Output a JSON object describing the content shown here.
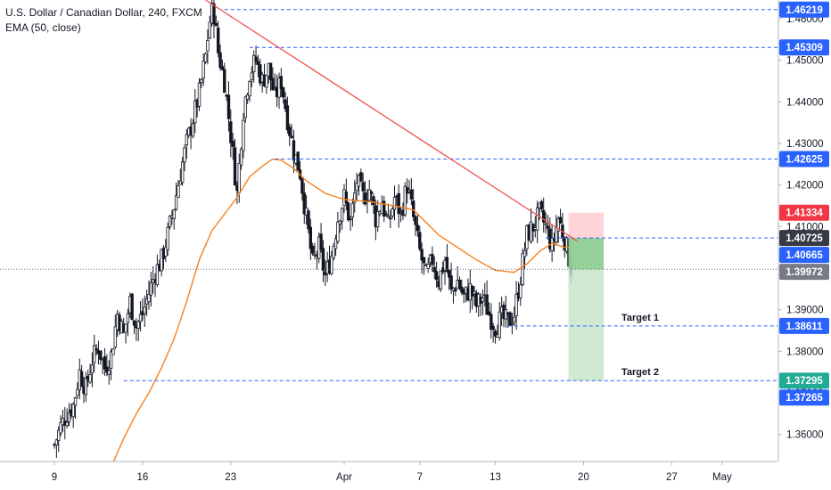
{
  "legend": {
    "title": "U.S. Dollar / Canadian Dollar, 240, FXCM",
    "indicator": "EMA (50, close)"
  },
  "chart_data": {
    "type": "candlestick",
    "title": "U.S. Dollar / Canadian Dollar, 240, FXCM",
    "indicator": "EMA (50, close)",
    "ylim": [
      1.3535,
      1.4645
    ],
    "y_ticks": [
      "1.36000",
      "1.37000",
      "1.38000",
      "1.39000",
      "1.40000",
      "1.41000",
      "1.42000",
      "1.43000",
      "1.44000",
      "1.45000",
      "1.46000"
    ],
    "x_ticks": [
      {
        "label": "9",
        "day": 0
      },
      {
        "label": "16",
        "day": 7
      },
      {
        "label": "23",
        "day": 14
      },
      {
        "label": "Apr",
        "day": 23
      },
      {
        "label": "7",
        "day": 29
      },
      {
        "label": "13",
        "day": 35
      },
      {
        "label": "20",
        "day": 42
      },
      {
        "label": "27",
        "day": 49
      },
      {
        "label": "May",
        "day": 53
      }
    ],
    "close_path": [
      [
        0.0,
        1.3575
      ],
      [
        0.5,
        1.362
      ],
      [
        1.0,
        1.365
      ],
      [
        1.5,
        1.367
      ],
      [
        2.0,
        1.375
      ],
      [
        2.5,
        1.371
      ],
      [
        3.0,
        1.378
      ],
      [
        3.5,
        1.381
      ],
      [
        4.0,
        1.376
      ],
      [
        4.5,
        1.379
      ],
      [
        5.0,
        1.389
      ],
      [
        5.5,
        1.384
      ],
      [
        6.0,
        1.392
      ],
      [
        6.5,
        1.386
      ],
      [
        7.0,
        1.389
      ],
      [
        7.5,
        1.394
      ],
      [
        8.0,
        1.399
      ],
      [
        8.5,
        1.402
      ],
      [
        9.0,
        1.408
      ],
      [
        9.5,
        1.415
      ],
      [
        10.0,
        1.423
      ],
      [
        10.5,
        1.43
      ],
      [
        11.0,
        1.436
      ],
      [
        11.5,
        1.442
      ],
      [
        12.0,
        1.451
      ],
      [
        12.3,
        1.459
      ],
      [
        12.6,
        1.463
      ],
      [
        13.0,
        1.452
      ],
      [
        13.5,
        1.445
      ],
      [
        14.0,
        1.432
      ],
      [
        14.5,
        1.418
      ],
      [
        15.0,
        1.438
      ],
      [
        15.5,
        1.447
      ],
      [
        16.0,
        1.45
      ],
      [
        16.5,
        1.445
      ],
      [
        17.0,
        1.448
      ],
      [
        17.5,
        1.441
      ],
      [
        18.0,
        1.445
      ],
      [
        18.5,
        1.436
      ],
      [
        19.0,
        1.428
      ],
      [
        19.5,
        1.423
      ],
      [
        20.0,
        1.412
      ],
      [
        20.5,
        1.401
      ],
      [
        21.0,
        1.405
      ],
      [
        21.5,
        1.398
      ],
      [
        22.0,
        1.403
      ],
      [
        22.5,
        1.412
      ],
      [
        23.0,
        1.417
      ],
      [
        23.5,
        1.411
      ],
      [
        24.0,
        1.421
      ],
      [
        24.5,
        1.417
      ],
      [
        25.0,
        1.419
      ],
      [
        25.5,
        1.412
      ],
      [
        26.0,
        1.416
      ],
      [
        26.5,
        1.41
      ],
      [
        27.0,
        1.417
      ],
      [
        27.5,
        1.413
      ],
      [
        28.0,
        1.42
      ],
      [
        28.5,
        1.412
      ],
      [
        29.0,
        1.404
      ],
      [
        29.5,
        1.398
      ],
      [
        30.0,
        1.402
      ],
      [
        30.5,
        1.397
      ],
      [
        31.0,
        1.402
      ],
      [
        31.5,
        1.394
      ],
      [
        32.0,
        1.397
      ],
      [
        32.5,
        1.393
      ],
      [
        33.0,
        1.395
      ],
      [
        33.5,
        1.391
      ],
      [
        34.0,
        1.393
      ],
      [
        34.5,
        1.389
      ],
      [
        35.0,
        1.386
      ],
      [
        35.5,
        1.388
      ],
      [
        36.0,
        1.387
      ],
      [
        36.5,
        1.389
      ],
      [
        37.0,
        1.398
      ],
      [
        37.5,
        1.408
      ],
      [
        38.0,
        1.41
      ],
      [
        38.5,
        1.413
      ],
      [
        39.0,
        1.41
      ],
      [
        39.5,
        1.405
      ],
      [
        40.0,
        1.412
      ],
      [
        40.5,
        1.407
      ],
      [
        40.8,
        1.403
      ],
      [
        41.0,
        1.4
      ]
    ],
    "ema_path": [
      [
        4.7,
        1.3535
      ],
      [
        5.5,
        1.359
      ],
      [
        6.5,
        1.365
      ],
      [
        7.5,
        1.37
      ],
      [
        8.5,
        1.376
      ],
      [
        9.5,
        1.383
      ],
      [
        10.5,
        1.392
      ],
      [
        11.5,
        1.402
      ],
      [
        12.5,
        1.409
      ],
      [
        13.5,
        1.413
      ],
      [
        14.5,
        1.417
      ],
      [
        15.5,
        1.422
      ],
      [
        16.5,
        1.4245
      ],
      [
        17.3,
        1.4262
      ],
      [
        18.0,
        1.426
      ],
      [
        19.0,
        1.424
      ],
      [
        20.0,
        1.421
      ],
      [
        21.5,
        1.418
      ],
      [
        23.0,
        1.4165
      ],
      [
        25.0,
        1.416
      ],
      [
        27.0,
        1.415
      ],
      [
        28.5,
        1.414
      ],
      [
        29.5,
        1.411
      ],
      [
        30.5,
        1.408
      ],
      [
        32.0,
        1.405
      ],
      [
        33.5,
        1.402
      ],
      [
        35.0,
        1.3995
      ],
      [
        36.5,
        1.399
      ],
      [
        37.5,
        1.401
      ],
      [
        38.5,
        1.404
      ],
      [
        39.5,
        1.406
      ],
      [
        40.5,
        1.405
      ],
      [
        41.0,
        1.405
      ]
    ],
    "trendline": {
      "start": [
        12.0,
        1.4645
      ],
      "end": [
        41.5,
        1.4065
      ]
    },
    "horizontal_levels": [
      {
        "value": 1.46219,
        "label": "1.46219",
        "start_day": 13.5,
        "color": "#2962ff"
      },
      {
        "value": 1.45309,
        "label": "1.45309",
        "start_day": 15.5,
        "color": "#2962ff"
      },
      {
        "value": 1.42625,
        "label": "1.42625",
        "start_day": 17.5,
        "color": "#2962ff"
      },
      {
        "value": 1.40725,
        "label": "1.40725",
        "start_day": 39.0,
        "color": "#2962ff"
      },
      {
        "value": 1.38611,
        "label": "1.38611",
        "start_day": 36.0,
        "color": "#2962ff",
        "annotation": "Target 1"
      },
      {
        "value": 1.37295,
        "label": "1.37295",
        "start_day": 5.5,
        "color": "#2962ff",
        "annotation": "Target 2"
      }
    ],
    "current_price_line": {
      "value": 1.39972,
      "label": "1.39972"
    },
    "position": {
      "entry": 1.40725,
      "stop": 1.41334,
      "target": 1.37295,
      "start_day": 40.8,
      "end_day": 43.6
    },
    "price_labels": [
      {
        "text": "1.46219",
        "value": 1.46219,
        "style": "blue"
      },
      {
        "text": "1.45309",
        "value": 1.45309,
        "style": "blue"
      },
      {
        "text": "1.42625",
        "value": 1.42625,
        "style": "blue"
      },
      {
        "text": "1.41334",
        "value": 1.41334,
        "style": "red"
      },
      {
        "text": "1.40725",
        "value": 1.40725,
        "style": "dark"
      },
      {
        "text": "1.40665",
        "value": 1.40665,
        "style": "blue"
      },
      {
        "text": "1.39972",
        "value": 1.39972,
        "style": "gray"
      },
      {
        "text": "1.38611",
        "value": 1.38611,
        "style": "blue"
      },
      {
        "text": "1.37295",
        "value": 1.37295,
        "style": "green"
      },
      {
        "text": "1.37265",
        "value": 1.37265,
        "style": "blue"
      }
    ],
    "colors": {
      "candle": "#131722",
      "ema": "#f7811f",
      "trendline": "#ef5350",
      "level": "#2962ff",
      "stop_zone": "#ffcdd2",
      "target_zone": "#c8e6c9",
      "target_zone_dark": "#81c784",
      "label_blue": "#2962ff",
      "label_red": "#f23645",
      "label_dark": "#363a45",
      "label_gray": "#787b86",
      "label_green": "#22ab94"
    }
  }
}
